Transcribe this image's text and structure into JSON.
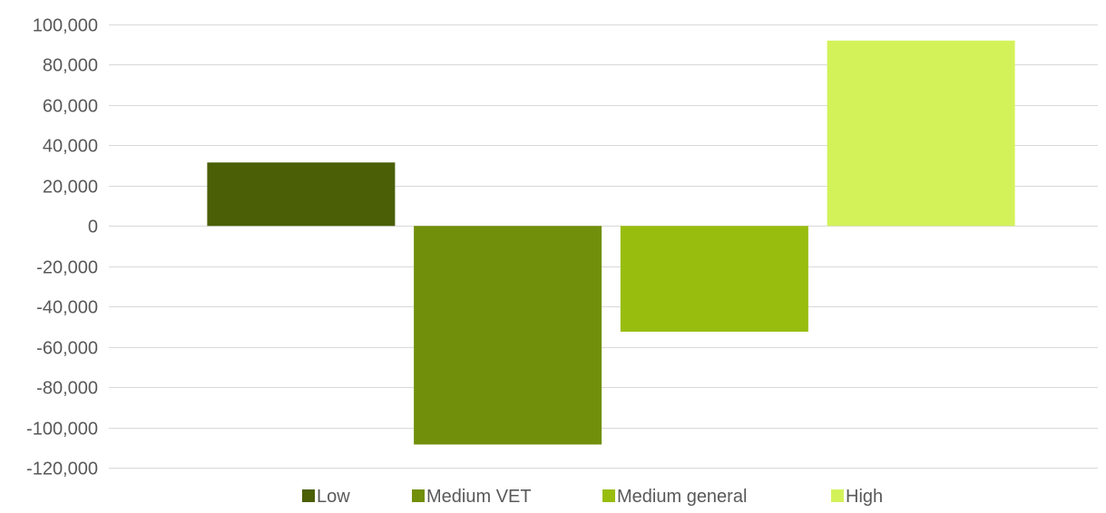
{
  "chart_data": {
    "type": "bar",
    "title": "",
    "xlabel": "",
    "ylabel": "",
    "ylim": [
      -120000,
      100000
    ],
    "yticks": [
      100000,
      80000,
      60000,
      40000,
      20000,
      0,
      -20000,
      -40000,
      -60000,
      -80000,
      -100000,
      -120000
    ],
    "ytick_labels": [
      "100,000",
      "80,000",
      "60,000",
      "40,000",
      "20,000",
      "0",
      "-20,000",
      "-40,000",
      "-60,000",
      "-80,000",
      "-100,000",
      "-120,000"
    ],
    "grid": true,
    "legend_position": "bottom",
    "series": [
      {
        "name": "Low",
        "value": 31500,
        "color": "#4a5f06"
      },
      {
        "name": "Medium VET",
        "value": -108500,
        "color": "#718f0a"
      },
      {
        "name": "Medium general",
        "value": -52500,
        "color": "#98bd0f"
      },
      {
        "name": "High",
        "value": 92000,
        "color": "#d3f25a"
      }
    ]
  }
}
